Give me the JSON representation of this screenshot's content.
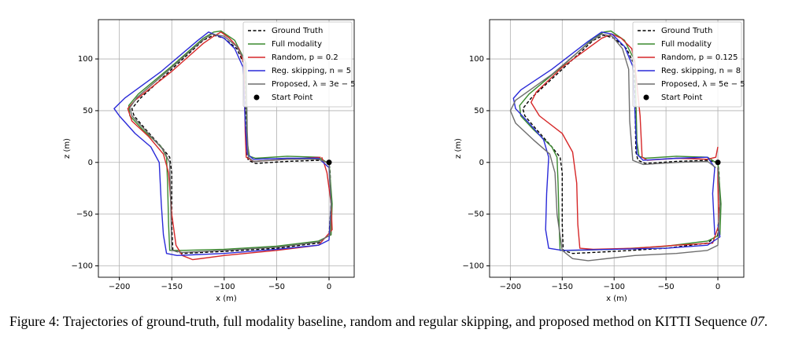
{
  "chart_data": [
    {
      "type": "line",
      "xlabel": "x (m)",
      "ylabel": "z (m)",
      "xlim": [
        -220,
        24
      ],
      "ylim": [
        -111,
        138
      ],
      "xticks": [
        {
          "value": -200,
          "label": "−200"
        },
        {
          "value": -150,
          "label": "−150"
        },
        {
          "value": -100,
          "label": "−100"
        },
        {
          "value": -50,
          "label": "−50"
        },
        0
      ],
      "yticks": [
        {
          "value": -100,
          "label": "−100"
        },
        {
          "value": -50,
          "label": "−50"
        },
        0,
        50,
        100
      ],
      "grid": true,
      "legend": "upper right",
      "series": [
        {
          "name": "Ground Truth",
          "color": "#000000",
          "dash": true,
          "x": [
            0,
            -10,
            -40,
            -70,
            -77,
            -79,
            -80,
            -81,
            -88,
            -100,
            -110,
            -120,
            -150,
            -180,
            -188,
            -186,
            -175,
            -160,
            -152,
            -150,
            -150,
            -149,
            -140,
            -100,
            -50,
            -10,
            0,
            2,
            1,
            0
          ],
          "values": [
            0,
            2,
            1,
            -1,
            2,
            10,
            60,
            95,
            110,
            120,
            123,
            118,
            90,
            62,
            52,
            45,
            32,
            15,
            5,
            -10,
            -60,
            -85,
            -88,
            -86,
            -83,
            -78,
            -70,
            -40,
            -10,
            0
          ]
        },
        {
          "name": "Full modality",
          "color": "#3a8a2e",
          "x": [
            -2,
            -10,
            -40,
            -70,
            -76,
            -78,
            -79,
            -80,
            -90,
            -103,
            -110,
            -120,
            -150,
            -182,
            -191,
            -190,
            -178,
            -160,
            -155,
            -154,
            -153,
            -152,
            -140,
            -100,
            -50,
            -10,
            2,
            3,
            0
          ],
          "values": [
            0,
            5,
            6,
            4,
            6,
            20,
            60,
            98,
            118,
            127,
            126,
            120,
            93,
            66,
            55,
            45,
            32,
            15,
            5,
            -20,
            -60,
            -85,
            -85,
            -84,
            -81,
            -76,
            -70,
            -40,
            0
          ]
        },
        {
          "name": "Random, p = 0.2",
          "color": "#d62728",
          "x": [
            -8,
            -40,
            -72,
            -79,
            -80,
            -81,
            -86,
            -95,
            -103,
            -110,
            -120,
            -150,
            -185,
            -192,
            -188,
            -172,
            -158,
            -153,
            -150,
            -146,
            -140,
            -130,
            -100,
            -50,
            -10,
            3,
            2,
            -2,
            -5,
            -7
          ],
          "values": [
            5,
            3,
            1,
            5,
            30,
            95,
            110,
            120,
            126,
            122,
            115,
            88,
            60,
            52,
            40,
            25,
            8,
            -10,
            -50,
            -80,
            -90,
            -94,
            -90,
            -85,
            -80,
            -65,
            -40,
            -10,
            0,
            5
          ]
        },
        {
          "name": "Reg. skipping, n = 5",
          "color": "#2a2ad8",
          "x": [
            0,
            -10,
            -40,
            -72,
            -78,
            -80,
            -82,
            -90,
            -100,
            -115,
            -125,
            -160,
            -195,
            -205,
            -200,
            -185,
            -170,
            -162,
            -160,
            -158,
            -155,
            -145,
            -100,
            -50,
            -10,
            0,
            2,
            0
          ],
          "values": [
            -5,
            4,
            4,
            3,
            8,
            40,
            92,
            110,
            120,
            126,
            118,
            88,
            62,
            52,
            45,
            28,
            15,
            0,
            -40,
            -70,
            -88,
            -90,
            -88,
            -84,
            -80,
            -75,
            -40,
            -5
          ]
        },
        {
          "name": "Proposed, λ = 3e − 5",
          "color": "#6e6e6e",
          "x": [
            -2,
            -10,
            -40,
            -72,
            -77,
            -78,
            -79,
            -88,
            -100,
            -112,
            -122,
            -152,
            -183,
            -190,
            -188,
            -176,
            -158,
            -152,
            -151,
            -150,
            -140,
            -100,
            -50,
            -10,
            1,
            2,
            0
          ],
          "values": [
            0,
            3,
            3,
            1,
            5,
            30,
            96,
            112,
            122,
            124,
            117,
            90,
            63,
            53,
            45,
            32,
            12,
            0,
            -40,
            -85,
            -87,
            -85,
            -82,
            -77,
            -70,
            -40,
            -2
          ]
        },
        {
          "name": "Start Point",
          "color": "#000000",
          "marker": true,
          "x": [
            0
          ],
          "values": [
            0
          ]
        }
      ]
    },
    {
      "type": "line",
      "xlabel": "x (m)",
      "ylabel": "z (m)",
      "xlim": [
        -220,
        25
      ],
      "ylim": [
        -111,
        138
      ],
      "xticks": [
        {
          "value": -200,
          "label": "−200"
        },
        {
          "value": -150,
          "label": "−150"
        },
        {
          "value": -100,
          "label": "−100"
        },
        {
          "value": -50,
          "label": "−50"
        },
        0
      ],
      "yticks": [
        {
          "value": -100,
          "label": "−100"
        },
        {
          "value": -50,
          "label": "−50"
        },
        0,
        50,
        100
      ],
      "grid": true,
      "legend": "upper right",
      "series": [
        {
          "name": "Ground Truth",
          "color": "#000000",
          "dash": true,
          "x": [
            0,
            -10,
            -40,
            -70,
            -77,
            -79,
            -80,
            -81,
            -88,
            -100,
            -110,
            -120,
            -150,
            -180,
            -188,
            -186,
            -175,
            -160,
            -152,
            -150,
            -150,
            -149,
            -140,
            -100,
            -50,
            -10,
            0,
            2,
            1,
            0
          ],
          "values": [
            0,
            2,
            1,
            -1,
            2,
            10,
            60,
            95,
            110,
            120,
            123,
            118,
            90,
            62,
            52,
            45,
            32,
            15,
            5,
            -10,
            -60,
            -85,
            -88,
            -86,
            -83,
            -78,
            -70,
            -40,
            -10,
            0
          ]
        },
        {
          "name": "Full modality",
          "color": "#3a8a2e",
          "x": [
            -2,
            -10,
            -40,
            -70,
            -76,
            -78,
            -79,
            -80,
            -90,
            -103,
            -110,
            -120,
            -150,
            -182,
            -191,
            -190,
            -178,
            -160,
            -155,
            -154,
            -153,
            -152,
            -140,
            -100,
            -50,
            -10,
            2,
            3,
            0
          ],
          "values": [
            0,
            5,
            6,
            4,
            6,
            20,
            60,
            98,
            118,
            127,
            126,
            120,
            93,
            66,
            55,
            45,
            32,
            15,
            5,
            -20,
            -60,
            -85,
            -85,
            -84,
            -81,
            -76,
            -70,
            -40,
            0
          ]
        },
        {
          "name": "Random, p = 0.125",
          "color": "#d62728",
          "x": [
            0,
            -2,
            -10,
            -40,
            -68,
            -73,
            -75,
            -80,
            -83,
            -93,
            -102,
            -112,
            -150,
            -175,
            -180,
            -172,
            -150,
            -140,
            -136,
            -135,
            -133,
            -120,
            -80,
            -40,
            -5,
            1,
            0,
            0
          ],
          "values": [
            15,
            5,
            3,
            4,
            2,
            5,
            45,
            95,
            110,
            120,
            124,
            120,
            92,
            68,
            58,
            45,
            28,
            10,
            -20,
            -60,
            -83,
            -84,
            -83,
            -80,
            -78,
            -60,
            -20,
            -5
          ]
        },
        {
          "name": "Reg. skipping, n = 8",
          "color": "#2a2ad8",
          "x": [
            -3,
            -5,
            -3,
            -10,
            -40,
            -72,
            -78,
            -80,
            -82,
            -90,
            -102,
            -112,
            -125,
            -160,
            -190,
            -197,
            -195,
            -182,
            -168,
            -163,
            -165,
            -166,
            -163,
            -150,
            -100,
            -50,
            -10,
            2,
            0
          ],
          "values": [
            -70,
            -30,
            -5,
            5,
            4,
            2,
            8,
            50,
            93,
            112,
            124,
            126,
            117,
            90,
            70,
            62,
            52,
            38,
            22,
            5,
            -30,
            -65,
            -83,
            -85,
            -84,
            -83,
            -80,
            -72,
            -60
          ]
        },
        {
          "name": "Proposed, λ = 5e − 5",
          "color": "#6e6e6e",
          "x": [
            -2,
            -10,
            -40,
            -72,
            -82,
            -85,
            -86,
            -92,
            -102,
            -112,
            -125,
            -160,
            -195,
            -200,
            -195,
            -178,
            -162,
            -157,
            -155,
            -150,
            -140,
            -125,
            -80,
            -40,
            -10,
            0,
            2,
            0
          ],
          "values": [
            -5,
            1,
            0,
            -2,
            2,
            40,
            90,
            110,
            122,
            124,
            115,
            85,
            60,
            50,
            38,
            22,
            8,
            -10,
            -50,
            -85,
            -93,
            -95,
            -90,
            -88,
            -85,
            -80,
            -40,
            -5
          ]
        },
        {
          "name": "Start Point",
          "color": "#000000",
          "marker": true,
          "x": [
            0
          ],
          "values": [
            0
          ]
        }
      ]
    }
  ],
  "caption": {
    "text": "Figure 4: Trajectories of ground-truth, full modality baseline, random and regular skipping, and proposed method on KITTI Sequence ",
    "sequence": "07",
    "end": "."
  }
}
